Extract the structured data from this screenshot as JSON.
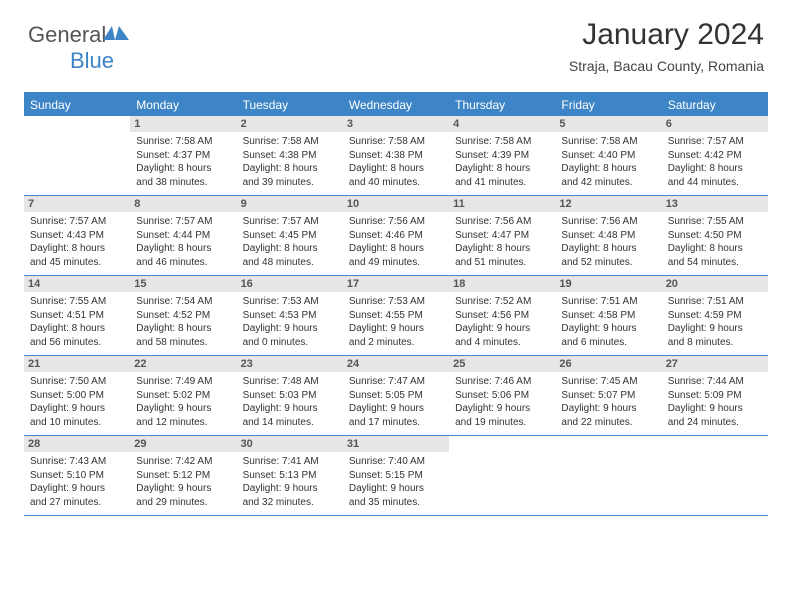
{
  "logo": {
    "text_gray": "General",
    "text_blue": "Blue"
  },
  "title": "January 2024",
  "location": "Straja, Bacau County, Romania",
  "colors": {
    "accent": "#3d85c6",
    "daynum_bg": "#e6e6e6",
    "text": "#333333",
    "background": "#ffffff"
  },
  "typography": {
    "title_fontsize": 30,
    "location_fontsize": 14,
    "header_fontsize": 12,
    "daynum_fontsize": 11,
    "info_fontsize": 10,
    "font_family": "Arial"
  },
  "day_names": [
    "Sunday",
    "Monday",
    "Tuesday",
    "Wednesday",
    "Thursday",
    "Friday",
    "Saturday"
  ],
  "weeks": [
    [
      null,
      {
        "n": "1",
        "sr": "Sunrise: 7:58 AM",
        "ss": "Sunset: 4:37 PM",
        "d1": "Daylight: 8 hours",
        "d2": "and 38 minutes."
      },
      {
        "n": "2",
        "sr": "Sunrise: 7:58 AM",
        "ss": "Sunset: 4:38 PM",
        "d1": "Daylight: 8 hours",
        "d2": "and 39 minutes."
      },
      {
        "n": "3",
        "sr": "Sunrise: 7:58 AM",
        "ss": "Sunset: 4:38 PM",
        "d1": "Daylight: 8 hours",
        "d2": "and 40 minutes."
      },
      {
        "n": "4",
        "sr": "Sunrise: 7:58 AM",
        "ss": "Sunset: 4:39 PM",
        "d1": "Daylight: 8 hours",
        "d2": "and 41 minutes."
      },
      {
        "n": "5",
        "sr": "Sunrise: 7:58 AM",
        "ss": "Sunset: 4:40 PM",
        "d1": "Daylight: 8 hours",
        "d2": "and 42 minutes."
      },
      {
        "n": "6",
        "sr": "Sunrise: 7:57 AM",
        "ss": "Sunset: 4:42 PM",
        "d1": "Daylight: 8 hours",
        "d2": "and 44 minutes."
      }
    ],
    [
      {
        "n": "7",
        "sr": "Sunrise: 7:57 AM",
        "ss": "Sunset: 4:43 PM",
        "d1": "Daylight: 8 hours",
        "d2": "and 45 minutes."
      },
      {
        "n": "8",
        "sr": "Sunrise: 7:57 AM",
        "ss": "Sunset: 4:44 PM",
        "d1": "Daylight: 8 hours",
        "d2": "and 46 minutes."
      },
      {
        "n": "9",
        "sr": "Sunrise: 7:57 AM",
        "ss": "Sunset: 4:45 PM",
        "d1": "Daylight: 8 hours",
        "d2": "and 48 minutes."
      },
      {
        "n": "10",
        "sr": "Sunrise: 7:56 AM",
        "ss": "Sunset: 4:46 PM",
        "d1": "Daylight: 8 hours",
        "d2": "and 49 minutes."
      },
      {
        "n": "11",
        "sr": "Sunrise: 7:56 AM",
        "ss": "Sunset: 4:47 PM",
        "d1": "Daylight: 8 hours",
        "d2": "and 51 minutes."
      },
      {
        "n": "12",
        "sr": "Sunrise: 7:56 AM",
        "ss": "Sunset: 4:48 PM",
        "d1": "Daylight: 8 hours",
        "d2": "and 52 minutes."
      },
      {
        "n": "13",
        "sr": "Sunrise: 7:55 AM",
        "ss": "Sunset: 4:50 PM",
        "d1": "Daylight: 8 hours",
        "d2": "and 54 minutes."
      }
    ],
    [
      {
        "n": "14",
        "sr": "Sunrise: 7:55 AM",
        "ss": "Sunset: 4:51 PM",
        "d1": "Daylight: 8 hours",
        "d2": "and 56 minutes."
      },
      {
        "n": "15",
        "sr": "Sunrise: 7:54 AM",
        "ss": "Sunset: 4:52 PM",
        "d1": "Daylight: 8 hours",
        "d2": "and 58 minutes."
      },
      {
        "n": "16",
        "sr": "Sunrise: 7:53 AM",
        "ss": "Sunset: 4:53 PM",
        "d1": "Daylight: 9 hours",
        "d2": "and 0 minutes."
      },
      {
        "n": "17",
        "sr": "Sunrise: 7:53 AM",
        "ss": "Sunset: 4:55 PM",
        "d1": "Daylight: 9 hours",
        "d2": "and 2 minutes."
      },
      {
        "n": "18",
        "sr": "Sunrise: 7:52 AM",
        "ss": "Sunset: 4:56 PM",
        "d1": "Daylight: 9 hours",
        "d2": "and 4 minutes."
      },
      {
        "n": "19",
        "sr": "Sunrise: 7:51 AM",
        "ss": "Sunset: 4:58 PM",
        "d1": "Daylight: 9 hours",
        "d2": "and 6 minutes."
      },
      {
        "n": "20",
        "sr": "Sunrise: 7:51 AM",
        "ss": "Sunset: 4:59 PM",
        "d1": "Daylight: 9 hours",
        "d2": "and 8 minutes."
      }
    ],
    [
      {
        "n": "21",
        "sr": "Sunrise: 7:50 AM",
        "ss": "Sunset: 5:00 PM",
        "d1": "Daylight: 9 hours",
        "d2": "and 10 minutes."
      },
      {
        "n": "22",
        "sr": "Sunrise: 7:49 AM",
        "ss": "Sunset: 5:02 PM",
        "d1": "Daylight: 9 hours",
        "d2": "and 12 minutes."
      },
      {
        "n": "23",
        "sr": "Sunrise: 7:48 AM",
        "ss": "Sunset: 5:03 PM",
        "d1": "Daylight: 9 hours",
        "d2": "and 14 minutes."
      },
      {
        "n": "24",
        "sr": "Sunrise: 7:47 AM",
        "ss": "Sunset: 5:05 PM",
        "d1": "Daylight: 9 hours",
        "d2": "and 17 minutes."
      },
      {
        "n": "25",
        "sr": "Sunrise: 7:46 AM",
        "ss": "Sunset: 5:06 PM",
        "d1": "Daylight: 9 hours",
        "d2": "and 19 minutes."
      },
      {
        "n": "26",
        "sr": "Sunrise: 7:45 AM",
        "ss": "Sunset: 5:07 PM",
        "d1": "Daylight: 9 hours",
        "d2": "and 22 minutes."
      },
      {
        "n": "27",
        "sr": "Sunrise: 7:44 AM",
        "ss": "Sunset: 5:09 PM",
        "d1": "Daylight: 9 hours",
        "d2": "and 24 minutes."
      }
    ],
    [
      {
        "n": "28",
        "sr": "Sunrise: 7:43 AM",
        "ss": "Sunset: 5:10 PM",
        "d1": "Daylight: 9 hours",
        "d2": "and 27 minutes."
      },
      {
        "n": "29",
        "sr": "Sunrise: 7:42 AM",
        "ss": "Sunset: 5:12 PM",
        "d1": "Daylight: 9 hours",
        "d2": "and 29 minutes."
      },
      {
        "n": "30",
        "sr": "Sunrise: 7:41 AM",
        "ss": "Sunset: 5:13 PM",
        "d1": "Daylight: 9 hours",
        "d2": "and 32 minutes."
      },
      {
        "n": "31",
        "sr": "Sunrise: 7:40 AM",
        "ss": "Sunset: 5:15 PM",
        "d1": "Daylight: 9 hours",
        "d2": "and 35 minutes."
      },
      null,
      null,
      null
    ]
  ]
}
